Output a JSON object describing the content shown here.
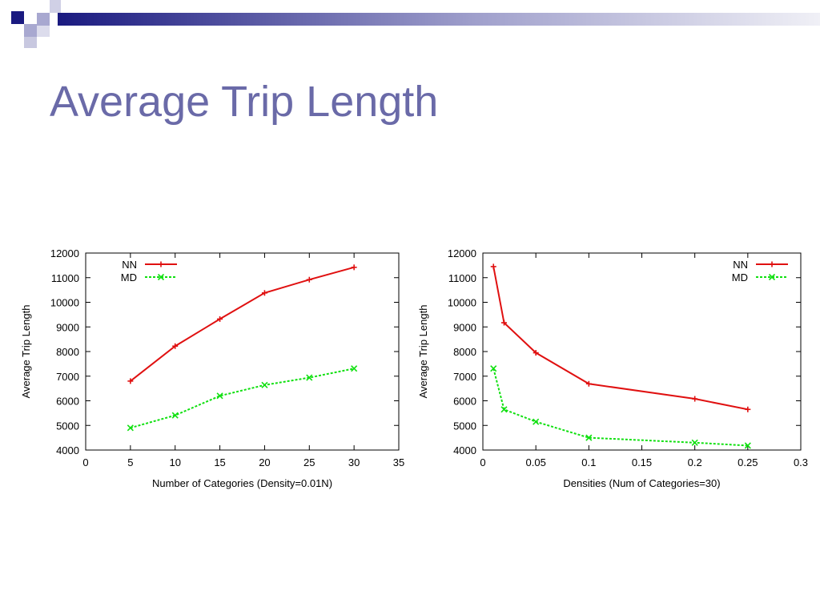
{
  "slide": {
    "title": "Average Trip Length",
    "title_color": "#6a6aa8",
    "header_colors": {
      "dark": "#1a1a80",
      "light": "#a8a8d0"
    }
  },
  "chart_data": [
    {
      "type": "line",
      "title": "",
      "xlabel": "Number of Categories (Density=0.01N)",
      "ylabel": "Average Trip Length",
      "xlim": [
        0,
        35
      ],
      "ylim": [
        4000,
        12000
      ],
      "xticks": [
        0,
        5,
        10,
        15,
        20,
        25,
        30,
        35
      ],
      "xtick_labels": [
        "0",
        "5",
        "10",
        "15",
        "20",
        "25",
        "30",
        "35"
      ],
      "yticks": [
        4000,
        5000,
        6000,
        7000,
        8000,
        9000,
        10000,
        11000,
        12000
      ],
      "ytick_labels": [
        "4000",
        "5000",
        "6000",
        "7000",
        "8000",
        "9000",
        "10000",
        "11000",
        "12000"
      ],
      "grid": false,
      "legend_position": "top-left",
      "series": [
        {
          "name": "NN",
          "color": "#e01010",
          "style": "solid",
          "marker": "plus",
          "x": [
            5,
            10,
            15,
            20,
            25,
            30
          ],
          "y": [
            6800,
            8220,
            9320,
            10380,
            10920,
            11420
          ]
        },
        {
          "name": "MD",
          "color": "#10e010",
          "style": "dashed",
          "marker": "x",
          "x": [
            5,
            10,
            15,
            20,
            25,
            30
          ],
          "y": [
            4900,
            5410,
            6200,
            6640,
            6940,
            7310
          ]
        }
      ]
    },
    {
      "type": "line",
      "title": "",
      "xlabel": "Densities (Num of Categories=30)",
      "ylabel": "Average Trip Length",
      "xlim": [
        0,
        0.3
      ],
      "ylim": [
        4000,
        12000
      ],
      "xticks": [
        0,
        0.05,
        0.1,
        0.15,
        0.2,
        0.25,
        0.3
      ],
      "xtick_labels": [
        "0",
        "0.05",
        "0.1",
        "0.15",
        "0.2",
        "0.25",
        "0.3"
      ],
      "yticks": [
        4000,
        5000,
        6000,
        7000,
        8000,
        9000,
        10000,
        11000,
        12000
      ],
      "ytick_labels": [
        "4000",
        "5000",
        "6000",
        "7000",
        "8000",
        "9000",
        "10000",
        "11000",
        "12000"
      ],
      "grid": false,
      "legend_position": "top-right",
      "series": [
        {
          "name": "NN",
          "color": "#e01010",
          "style": "solid",
          "marker": "plus",
          "x": [
            0.01,
            0.02,
            0.05,
            0.1,
            0.2,
            0.25
          ],
          "y": [
            11450,
            9170,
            7950,
            6690,
            6080,
            5650
          ]
        },
        {
          "name": "MD",
          "color": "#10e010",
          "style": "dashed",
          "marker": "x",
          "x": [
            0.01,
            0.02,
            0.05,
            0.1,
            0.2,
            0.25
          ],
          "y": [
            7310,
            5650,
            5150,
            4500,
            4300,
            4180
          ]
        }
      ]
    }
  ]
}
